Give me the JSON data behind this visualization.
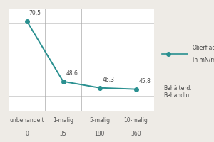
{
  "x_values": [
    0,
    1,
    2,
    3
  ],
  "y_values": [
    70.5,
    48.6,
    46.3,
    45.8
  ],
  "x_labels_top": [
    "unbehandelt",
    "1-malig",
    "5-malig",
    "10-malig"
  ],
  "x_labels_bot": [
    "0",
    "35",
    "180",
    "360"
  ],
  "data_labels": [
    "70,5",
    "48,6",
    "46,3",
    "45,8"
  ],
  "line_color": "#2a9090",
  "marker_color": "#2a9090",
  "background_color": "#eeebe6",
  "plot_bg_color": "#ffffff",
  "grid_color": "#cccccc",
  "sep_color": "#aaaaaa",
  "ylim": [
    38,
    75
  ],
  "xlim": [
    -0.5,
    3.5
  ],
  "legend_text1": "Oberfläch-",
  "legend_text2": "in mN/m",
  "legend_text3": "Behälterd.",
  "legend_text4": "Behandlu.",
  "tick_fontsize": 5.5,
  "label_fontsize": 5.5,
  "legend_fontsize": 5.5,
  "n_gridlines": 8
}
